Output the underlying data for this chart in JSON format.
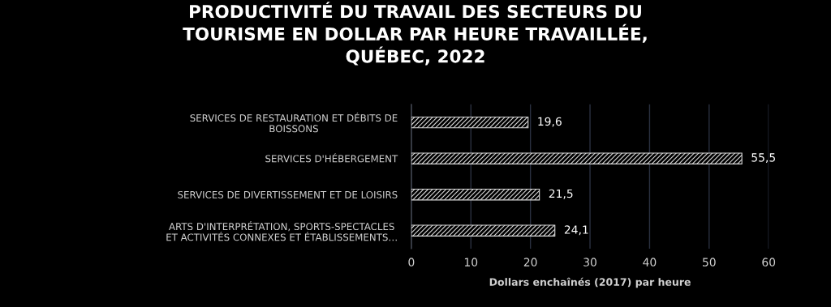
{
  "chart_data": {
    "type": "bar",
    "orientation": "horizontal",
    "title": "PRODUCTIVITÉ DU TRAVAIL DES SECTEURS DU\nTOURISME EN DOLLAR PAR HEURE TRAVAILLÉE,\nQUÉBEC, 2022",
    "xlabel": "Dollars enchaînés (2017) par heure",
    "categories": [
      "SERVICES DE RESTAURATION ET DÉBITS DE\nBOISSONS",
      "SERVICES D'HÉBERGEMENT",
      "SERVICES DE DIVERTISSEMENT ET DE LOISIRS",
      "ARTS D'INTERPRÉTATION, SPORTS-SPECTACLES\nET ACTIVITÉS CONNEXES ET ÉTABLISSEMENTS…"
    ],
    "values": [
      19.6,
      55.5,
      21.5,
      24.1
    ],
    "value_labels": [
      "19,6",
      "55,5",
      "21,5",
      "24,1"
    ],
    "color": "#d9d9d9",
    "xlim": [
      0,
      60
    ],
    "xticks": [
      0,
      10,
      20,
      30,
      40,
      50,
      60
    ],
    "grid": "x",
    "legend": false
  }
}
